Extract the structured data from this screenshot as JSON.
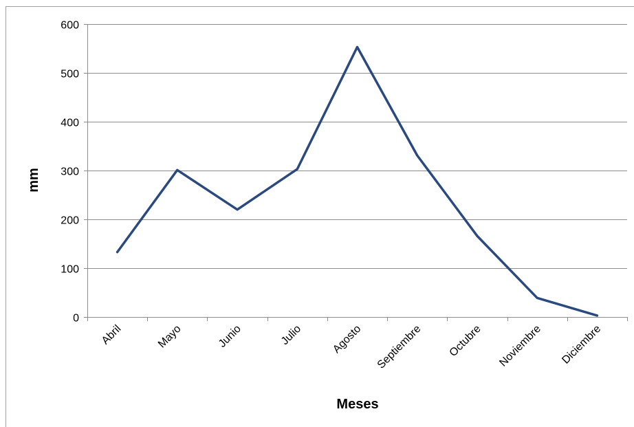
{
  "chart_data": {
    "type": "line",
    "title": "",
    "xlabel": "Meses",
    "ylabel": "mm",
    "categories": [
      "Abril",
      "Mayo",
      "Junio",
      "Julio",
      "Agosto",
      "Septiembre",
      "Octubre",
      "Noviembre",
      "Diciembre"
    ],
    "series": [
      {
        "values": [
          133,
          301,
          220,
          303,
          553,
          331,
          166,
          39,
          3
        ],
        "color": "#2a4a7f"
      }
    ],
    "ylim": [
      0,
      600
    ],
    "yticks": [
      "0",
      "100",
      "200",
      "300",
      "400",
      "500",
      "600"
    ],
    "grid": true,
    "legend": "none"
  }
}
